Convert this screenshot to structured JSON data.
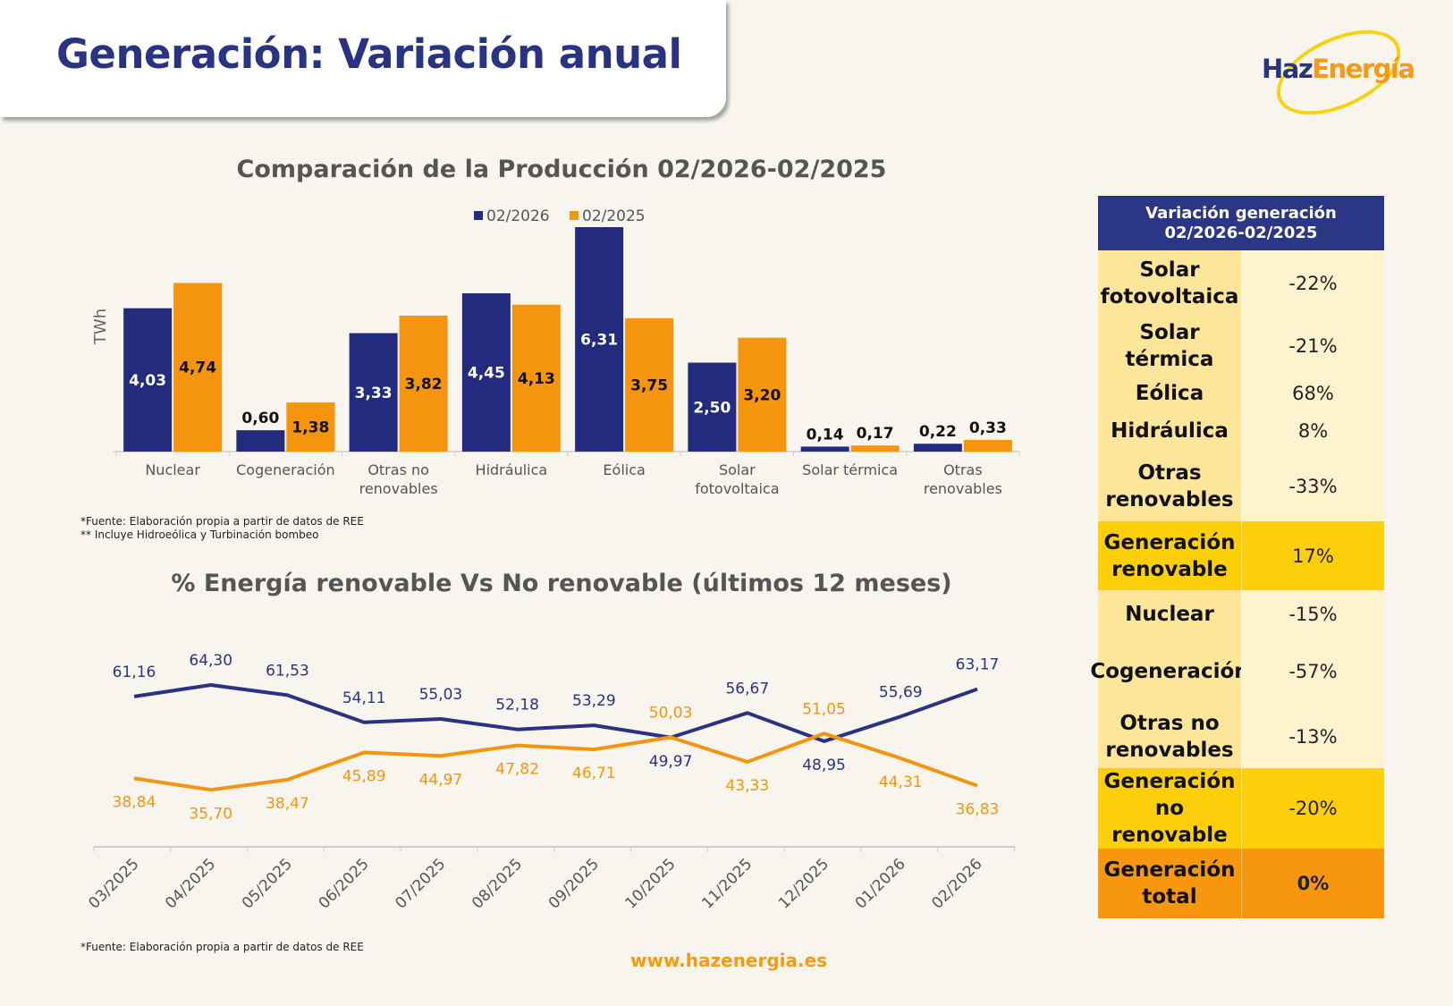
{
  "header": {
    "title": "Generación: Variación anual",
    "logo_text": [
      "Haz",
      "Energía"
    ]
  },
  "colors": {
    "navy": "#232b7e",
    "orange": "#f5940f",
    "table_header": "#2b3684",
    "label_bg": "#fde59a",
    "value_bg": "#fff2cf",
    "subtotal_bg": "#fccf0a",
    "total_bg": "#f7960f"
  },
  "chart_data": [
    {
      "type": "bar",
      "title": "Comparación de la Producción 02/2026-02/2025",
      "ylabel": "TWh",
      "xlabel": "",
      "legend_position": "top",
      "grid": false,
      "categories": [
        "Nuclear",
        "Cogeneración",
        "Otras no renovables",
        "Hidráulica",
        "Eólica",
        "Solar fotovoltaica",
        "Solar térmica",
        "Otras renovables"
      ],
      "category_lines": [
        [
          "Nuclear"
        ],
        [
          "Cogeneración"
        ],
        [
          "Otras no",
          "renovables"
        ],
        [
          "Hidráulica"
        ],
        [
          "Eólica"
        ],
        [
          "Solar",
          "fotovoltaica"
        ],
        [
          "Solar térmica"
        ],
        [
          "Otras",
          "renovables"
        ]
      ],
      "ylim": [
        0,
        6.31
      ],
      "series": [
        {
          "name": "02/2026",
          "color": "#232b7e",
          "values": [
            4.03,
            0.6,
            3.33,
            4.45,
            6.31,
            2.5,
            0.14,
            0.22
          ],
          "labels": [
            "4,03",
            "0,60",
            "3,33",
            "4,45",
            "6,31",
            "2,50",
            "0,14",
            "0,22"
          ]
        },
        {
          "name": "02/2025",
          "color": "#f5940f",
          "values": [
            4.74,
            1.38,
            3.82,
            4.13,
            3.75,
            3.2,
            0.17,
            0.33
          ],
          "labels": [
            "4,74",
            "1,38",
            "3,82",
            "4,13",
            "3,75",
            "3,20",
            "0,17",
            "0,33"
          ]
        }
      ]
    },
    {
      "type": "line",
      "title": "%  Energía renovable Vs No renovable (últimos 12 meses)",
      "xlabel": "",
      "ylabel": "",
      "grid": false,
      "categories": [
        "03/2025",
        "04/2025",
        "05/2025",
        "06/2025",
        "07/2025",
        "08/2025",
        "09/2025",
        "10/2025",
        "11/2025",
        "12/2025",
        "01/2026",
        "02/2026"
      ],
      "series": [
        {
          "color": "#2a3282",
          "values": [
            61.16,
            64.3,
            61.53,
            54.11,
            55.03,
            52.18,
            53.29,
            49.97,
            56.67,
            48.95,
            55.69,
            63.17
          ],
          "labels": [
            "61,16",
            "64,30",
            "61,53",
            "54,11",
            "55,03",
            "52,18",
            "53,29",
            "49,97",
            "56,67",
            "48,95",
            "55,69",
            "63,17"
          ]
        },
        {
          "color": "#f5940f",
          "values": [
            38.84,
            35.7,
            38.47,
            45.89,
            44.97,
            47.82,
            46.71,
            50.03,
            43.33,
            51.05,
            44.31,
            36.83
          ],
          "labels": [
            "38,84",
            "35,70",
            "38,47",
            "45,89",
            "44,97",
            "47,82",
            "46,71",
            "50,03",
            "43,33",
            "51,05",
            "44,31",
            "36,83"
          ]
        }
      ]
    }
  ],
  "notes": {
    "bar_source": "*Fuente:  Elaboración propia a partir de datos de REE",
    "bar_note2": "** Incluye Hidroeólica y Turbinación bombeo",
    "line_source": "*Fuente:  Elaboración propia a partir de datos de REE"
  },
  "footer": {
    "url": "www.hazenergia.es"
  },
  "table": {
    "header": [
      "Variación generación",
      "02/2026-02/2025"
    ],
    "rows": [
      {
        "label": "Solar fotovoltaica",
        "value": "-22%",
        "kind": "base"
      },
      {
        "label": "Solar térmica",
        "value": "-21%",
        "kind": "base"
      },
      {
        "label": "Eólica",
        "value": "68%",
        "kind": "base"
      },
      {
        "label": "Hidráulica",
        "value": "8%",
        "kind": "base"
      },
      {
        "label": "Otras renovables",
        "value": "-33%",
        "kind": "base"
      },
      {
        "label": "Generación renovable",
        "value": "17%",
        "kind": "sub"
      },
      {
        "label": "Nuclear",
        "value": "-15%",
        "kind": "base"
      },
      {
        "label": "Cogeneración",
        "value": "-57%",
        "kind": "base"
      },
      {
        "label": "Otras no renovables",
        "value": "-13%",
        "kind": "base"
      },
      {
        "label": "Generación no renovable",
        "value": "-20%",
        "kind": "sub"
      },
      {
        "label": "Generación total",
        "value": "0%",
        "kind": "tot"
      }
    ]
  }
}
